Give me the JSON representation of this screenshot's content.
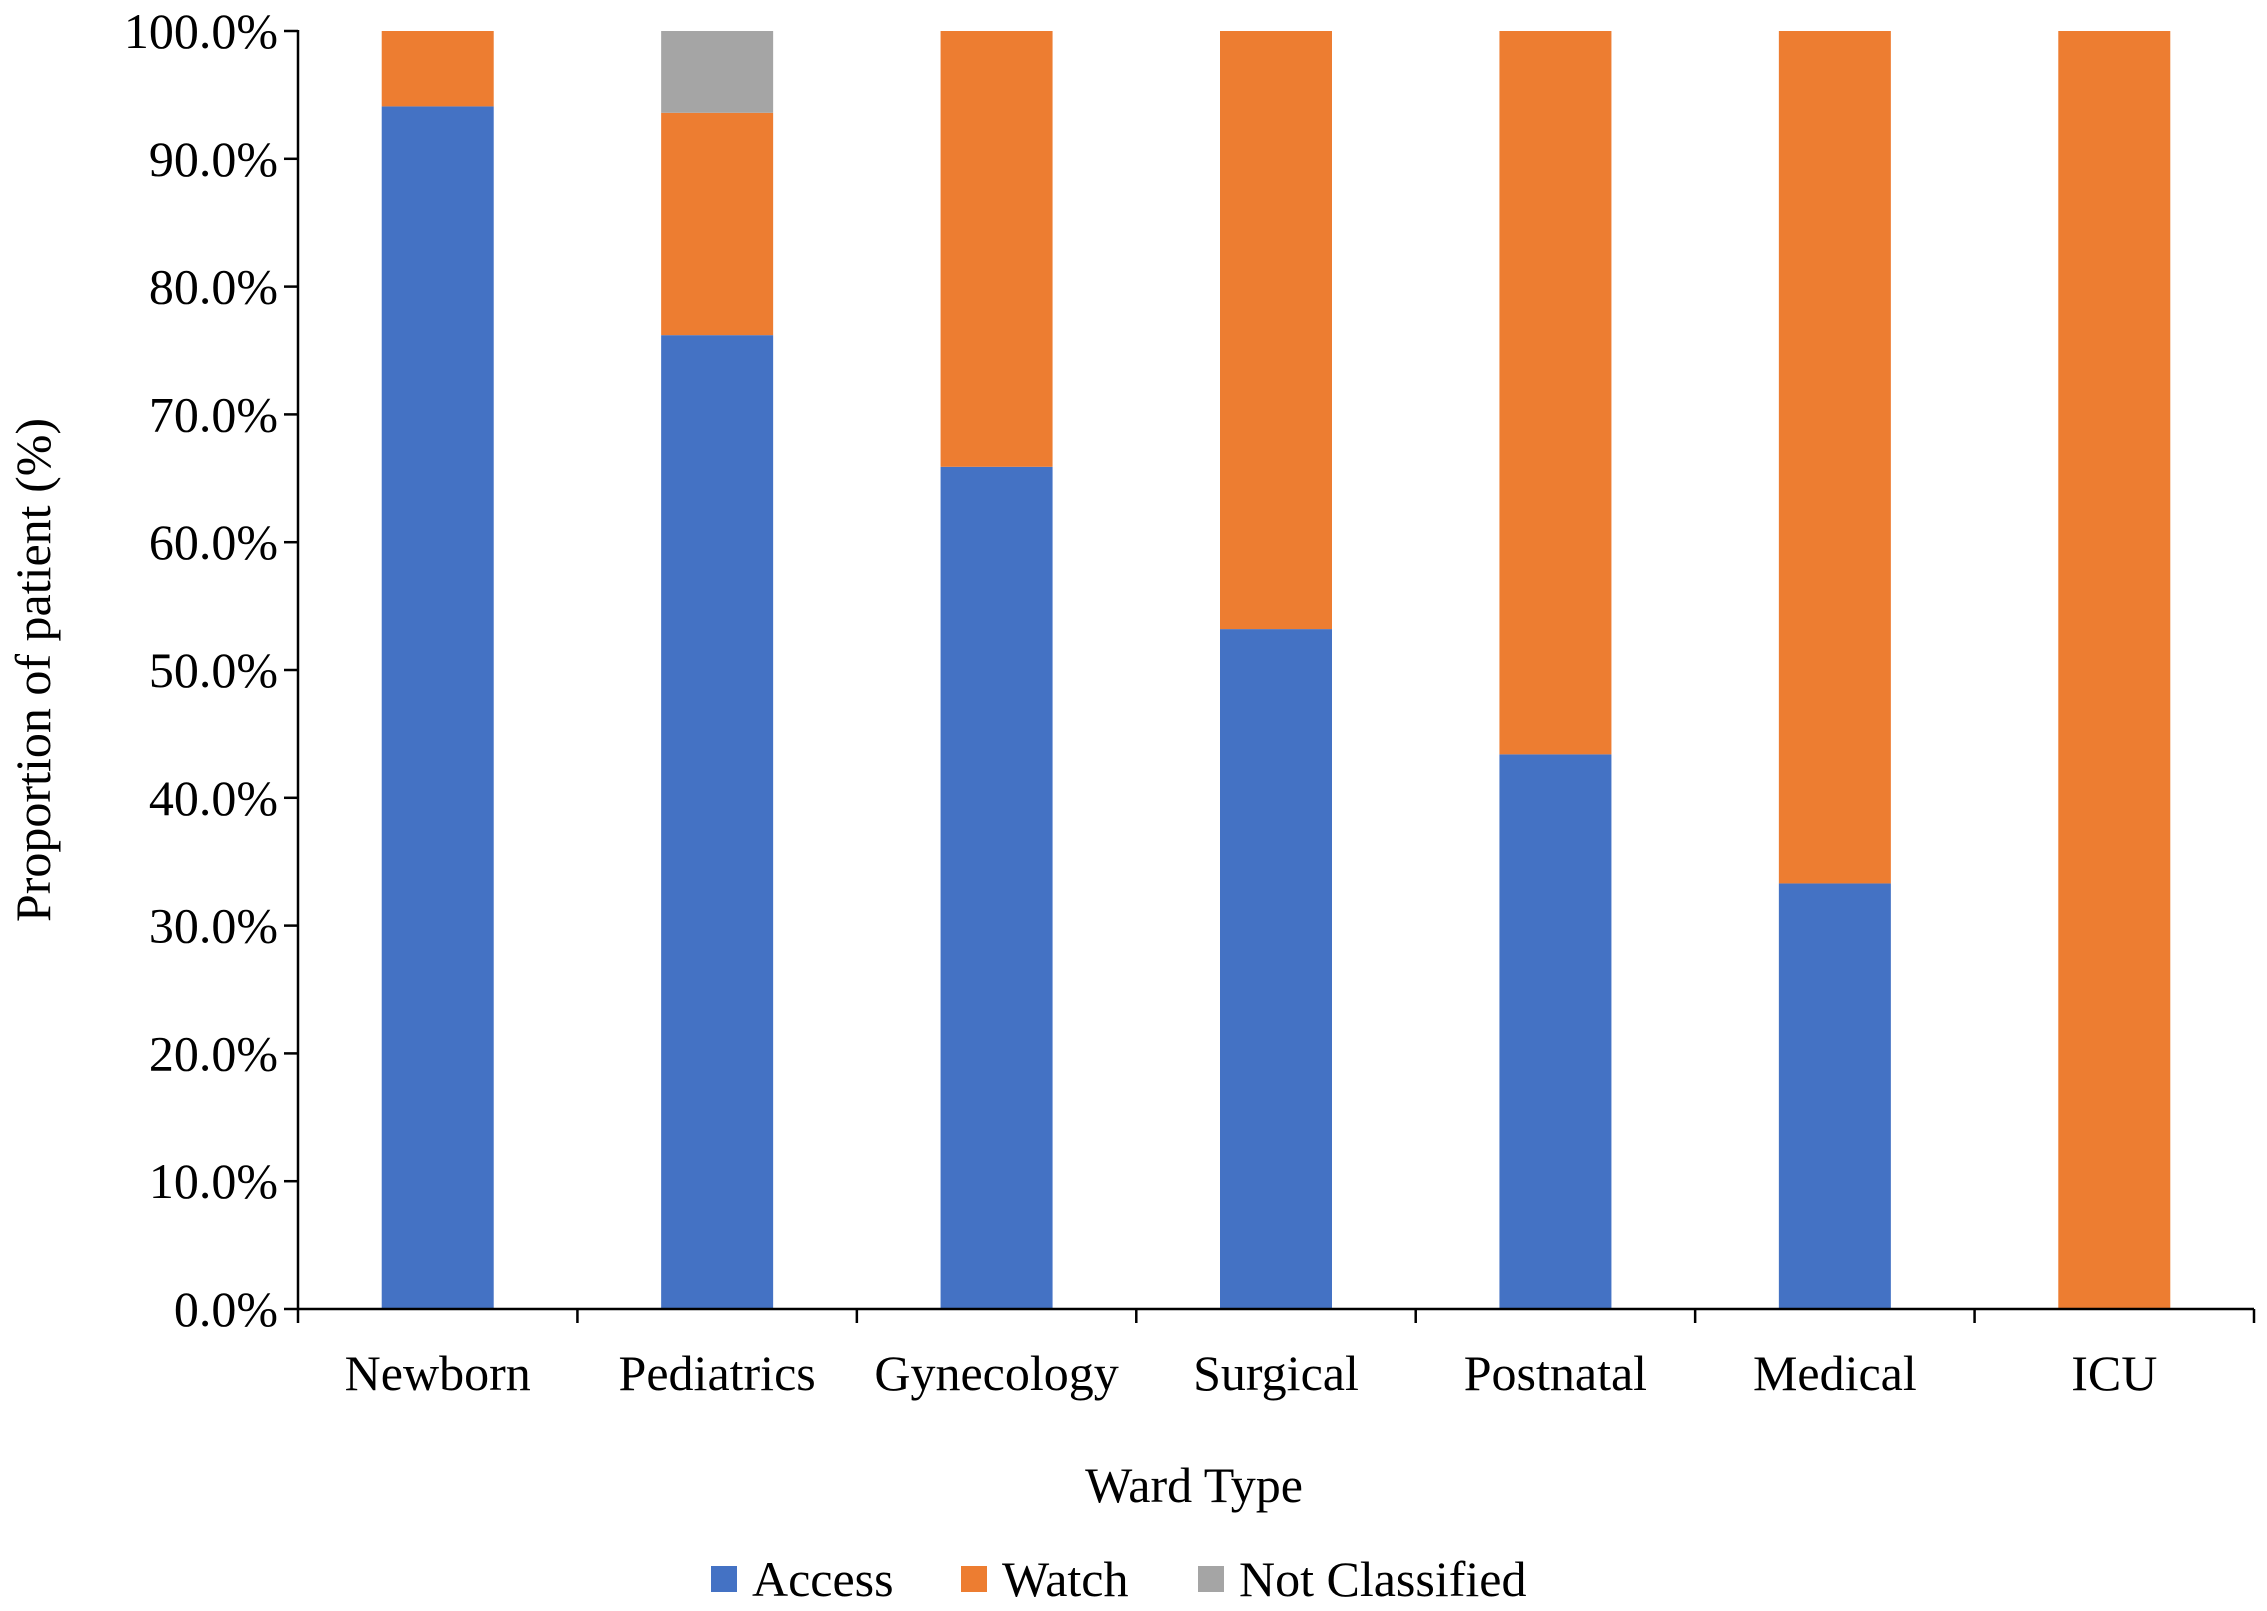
{
  "chart_data": {
    "type": "bar",
    "stacked": true,
    "title": "",
    "xlabel": "Ward Type",
    "ylabel": "Proportion of patient (%)",
    "ylim": [
      0,
      100
    ],
    "yticks": [
      0,
      10,
      20,
      30,
      40,
      50,
      60,
      70,
      80,
      90,
      100
    ],
    "ytick_labels": [
      "0.0%",
      "10.0%",
      "20.0%",
      "30.0%",
      "40.0%",
      "50.0%",
      "60.0%",
      "70.0%",
      "80.0%",
      "90.0%",
      "100.0%"
    ],
    "categories": [
      "Newborn",
      "Pediatrics",
      "Gynecology",
      "Surgical",
      "Postnatal",
      "Medical",
      "ICU"
    ],
    "series": [
      {
        "name": "Access",
        "color": "#4472C4",
        "values": [
          94.1,
          76.2,
          65.9,
          53.2,
          43.4,
          33.3,
          0.0
        ]
      },
      {
        "name": "Watch",
        "color": "#ED7D31",
        "values": [
          5.9,
          17.4,
          34.1,
          46.8,
          56.6,
          66.7,
          100.0
        ]
      },
      {
        "name": "Not Classified",
        "color": "#A5A5A5",
        "values": [
          0.0,
          6.4,
          0.0,
          0.0,
          0.0,
          0.0,
          0.0
        ]
      }
    ],
    "grid": false,
    "legend_position": "bottom"
  }
}
